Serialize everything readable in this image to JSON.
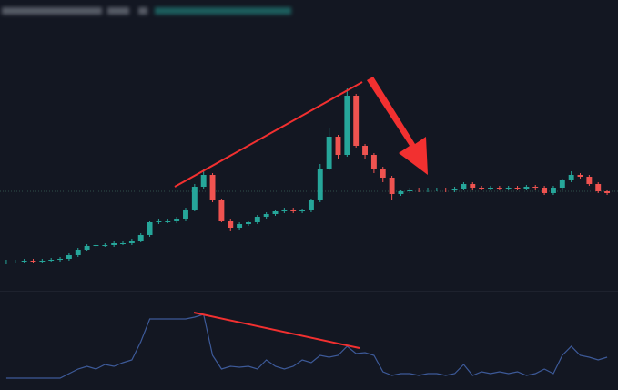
{
  "chart_data": {
    "type": "candlestick",
    "ylim": [
      0,
      260
    ],
    "up_color": "#26a69a",
    "down_color": "#ef5350",
    "open": [
      22,
      23,
      23,
      24,
      23,
      24,
      25,
      26,
      30,
      36,
      40,
      41,
      41,
      43,
      43,
      46,
      52,
      66,
      67,
      67,
      70,
      80,
      105,
      118,
      90,
      68,
      60,
      64,
      66,
      72,
      75,
      78,
      80,
      78,
      79,
      90,
      125,
      160,
      140,
      205,
      150,
      140,
      125,
      115,
      97,
      100,
      102,
      101,
      102,
      102,
      101,
      103,
      108,
      104,
      103,
      104,
      103,
      104,
      103,
      105,
      104,
      98,
      104,
      112,
      118,
      116,
      108,
      100
    ],
    "high": [
      25,
      25,
      26,
      26,
      26,
      27,
      28,
      32,
      38,
      42,
      43,
      43,
      45,
      45,
      48,
      54,
      68,
      70,
      70,
      72,
      82,
      108,
      125,
      120,
      92,
      70,
      66,
      68,
      74,
      77,
      80,
      82,
      82,
      81,
      92,
      130,
      170,
      162,
      213,
      207,
      152,
      142,
      127,
      117,
      102,
      104,
      104,
      104,
      104,
      104,
      105,
      110,
      110,
      106,
      106,
      106,
      106,
      106,
      107,
      107,
      106,
      106,
      114,
      122,
      120,
      118,
      110,
      102
    ],
    "low": [
      20,
      21,
      21,
      21,
      21,
      22,
      23,
      24,
      28,
      34,
      38,
      39,
      39,
      41,
      41,
      44,
      50,
      64,
      65,
      65,
      68,
      78,
      103,
      88,
      66,
      56,
      58,
      62,
      64,
      70,
      73,
      76,
      76,
      76,
      77,
      88,
      123,
      136,
      138,
      148,
      136,
      120,
      110,
      90,
      95,
      98,
      99,
      99,
      100,
      99,
      99,
      101,
      102,
      101,
      101,
      101,
      101,
      101,
      101,
      102,
      96,
      96,
      102,
      110,
      114,
      106,
      98,
      96
    ],
    "close": [
      23,
      23,
      24,
      23,
      24,
      25,
      26,
      30,
      36,
      40,
      41,
      41,
      43,
      43,
      46,
      52,
      66,
      67,
      67,
      70,
      80,
      105,
      118,
      90,
      68,
      60,
      64,
      66,
      72,
      75,
      78,
      80,
      78,
      79,
      90,
      125,
      160,
      140,
      205,
      150,
      140,
      125,
      115,
      97,
      100,
      102,
      101,
      102,
      102,
      101,
      103,
      108,
      104,
      103,
      104,
      103,
      104,
      103,
      105,
      104,
      98,
      104,
      112,
      118,
      116,
      108,
      100,
      98
    ],
    "indicator": {
      "color": "#3d5a99",
      "ylim": [
        0,
        90
      ],
      "values": [
        5,
        5,
        5,
        5,
        5,
        5,
        5,
        10,
        15,
        18,
        15,
        20,
        18,
        22,
        25,
        45,
        70,
        70,
        70,
        70,
        70,
        72,
        75,
        30,
        15,
        18,
        17,
        18,
        15,
        25,
        18,
        15,
        18,
        25,
        22,
        30,
        28,
        30,
        40,
        32,
        33,
        30,
        12,
        8,
        10,
        10,
        8,
        10,
        10,
        8,
        10,
        20,
        8,
        12,
        10,
        12,
        10,
        12,
        8,
        10,
        15,
        10,
        30,
        40,
        30,
        28,
        25,
        28
      ]
    }
  }
}
